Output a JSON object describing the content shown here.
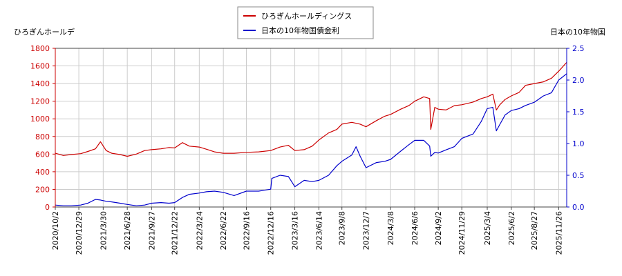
{
  "chart_data": {
    "type": "line",
    "legend": {
      "placement": "top-center",
      "entries": [
        "ひろぎんホールディングス",
        "日本の10年物国債金利"
      ]
    },
    "left_axis": {
      "label": "ひろぎんホールデ",
      "ylim": [
        0,
        1800
      ],
      "ticks": [
        "0",
        "200",
        "400",
        "600",
        "800",
        "1000",
        "1200",
        "1400",
        "1600",
        "1800"
      ],
      "color": "#cc0000"
    },
    "right_axis": {
      "label": "日本の10年物国",
      "ylim": [
        0,
        2.5
      ],
      "ticks": [
        "0.0",
        "0.5",
        "1.0",
        "1.5",
        "2.0",
        "2.5"
      ],
      "color": "#0000cc"
    },
    "x_ticks": [
      "2020/10/2",
      "2020/12/29",
      "2021/3/30",
      "2021/6/28",
      "2021/9/27",
      "2021/12/22",
      "2022/3/24",
      "2022/6/22",
      "2022/9/16",
      "2022/12/16",
      "2023/3/16",
      "2023/6/14",
      "2023/9/8",
      "2023/12/7",
      "2024/3/8",
      "2024/6/6",
      "2024/9/2",
      "2024/11/29",
      "2025/3/4",
      "2025/6/2",
      "2025/8/27",
      "2025/11/26"
    ],
    "grid": true,
    "series": [
      {
        "name": "ひろぎんホールディングス",
        "axis": "left",
        "color": "#cc0000",
        "x": [
          "2020/10/2",
          "2020/11/1",
          "2020/12/1",
          "2021/1/5",
          "2021/2/1",
          "2021/3/1",
          "2021/3/20",
          "2021/4/10",
          "2021/5/1",
          "2021/6/1",
          "2021/6/28",
          "2021/8/1",
          "2021/9/1",
          "2021/9/27",
          "2021/11/1",
          "2021/12/1",
          "2021/12/22",
          "2022/1/20",
          "2022/2/15",
          "2022/3/24",
          "2022/4/20",
          "2022/5/20",
          "2022/6/22",
          "2022/8/1",
          "2022/9/16",
          "2022/11/1",
          "2022/12/16",
          "2023/1/20",
          "2023/2/20",
          "2023/3/16",
          "2023/4/20",
          "2023/5/20",
          "2023/6/14",
          "2023/7/20",
          "2023/8/20",
          "2023/9/8",
          "2023/10/15",
          "2023/11/15",
          "2023/12/7",
          "2024/1/15",
          "2024/2/15",
          "2024/3/8",
          "2024/4/15",
          "2024/5/15",
          "2024/6/6",
          "2024/7/10",
          "2024/8/1",
          "2024/8/5",
          "2024/8/20",
          "2024/9/2",
          "2024/10/1",
          "2024/11/1",
          "2024/11/29",
          "2025/1/10",
          "2025/2/10",
          "2025/3/4",
          "2025/3/25",
          "2025/4/7",
          "2025/4/20",
          "2025/5/10",
          "2025/6/2",
          "2025/7/1",
          "2025/7/25",
          "2025/8/27",
          "2025/9/30",
          "2025/10/30",
          "2025/11/26",
          "2025/12/26"
        ],
        "values": [
          610,
          585,
          595,
          605,
          630,
          660,
          740,
          640,
          610,
          595,
          575,
          600,
          640,
          650,
          660,
          675,
          670,
          730,
          690,
          680,
          655,
          625,
          610,
          610,
          620,
          625,
          640,
          680,
          700,
          640,
          650,
          690,
          760,
          840,
          880,
          940,
          960,
          940,
          910,
          980,
          1030,
          1050,
          1110,
          1150,
          1200,
          1250,
          1230,
          880,
          1130,
          1110,
          1100,
          1150,
          1160,
          1190,
          1230,
          1250,
          1280,
          1100,
          1160,
          1220,
          1260,
          1300,
          1380,
          1400,
          1420,
          1460,
          1540,
          1640
        ]
      },
      {
        "name": "日本の10年物国債金利",
        "axis": "right",
        "color": "#0000cc",
        "x": [
          "2020/10/2",
          "2020/11/1",
          "2020/12/1",
          "2021/1/5",
          "2021/2/1",
          "2021/3/1",
          "2021/3/20",
          "2021/4/10",
          "2021/5/1",
          "2021/6/1",
          "2021/6/28",
          "2021/8/1",
          "2021/9/1",
          "2021/9/27",
          "2021/11/1",
          "2021/12/1",
          "2021/12/22",
          "2022/1/20",
          "2022/2/15",
          "2022/3/24",
          "2022/4/20",
          "2022/5/20",
          "2022/6/22",
          "2022/8/1",
          "2022/9/16",
          "2022/11/1",
          "2022/12/16",
          "2022/12/20",
          "2023/1/20",
          "2023/2/20",
          "2023/3/16",
          "2023/4/20",
          "2023/5/20",
          "2023/6/14",
          "2023/7/20",
          "2023/8/20",
          "2023/9/8",
          "2023/10/15",
          "2023/10/31",
          "2023/11/15",
          "2023/12/7",
          "2024/1/15",
          "2024/2/15",
          "2024/3/8",
          "2024/4/15",
          "2024/5/15",
          "2024/6/6",
          "2024/7/10",
          "2024/8/1",
          "2024/8/5",
          "2024/8/20",
          "2024/9/2",
          "2024/10/1",
          "2024/11/1",
          "2024/11/29",
          "2025/1/10",
          "2025/2/10",
          "2025/3/4",
          "2025/3/25",
          "2025/4/7",
          "2025/4/20",
          "2025/5/10",
          "2025/6/2",
          "2025/7/1",
          "2025/7/25",
          "2025/8/27",
          "2025/9/30",
          "2025/10/30",
          "2025/11/26",
          "2025/12/26"
        ],
        "values": [
          0.03,
          0.02,
          0.02,
          0.03,
          0.06,
          0.12,
          0.11,
          0.09,
          0.08,
          0.06,
          0.04,
          0.02,
          0.03,
          0.06,
          0.07,
          0.06,
          0.07,
          0.15,
          0.2,
          0.22,
          0.24,
          0.25,
          0.23,
          0.18,
          0.25,
          0.25,
          0.28,
          0.45,
          0.5,
          0.48,
          0.32,
          0.42,
          0.4,
          0.42,
          0.5,
          0.65,
          0.72,
          0.82,
          0.95,
          0.8,
          0.62,
          0.7,
          0.72,
          0.75,
          0.88,
          0.98,
          1.05,
          1.05,
          0.96,
          0.8,
          0.86,
          0.85,
          0.9,
          0.95,
          1.08,
          1.15,
          1.35,
          1.55,
          1.57,
          1.2,
          1.3,
          1.45,
          1.52,
          1.55,
          1.6,
          1.65,
          1.75,
          1.8,
          2.0,
          2.1
        ]
      }
    ]
  }
}
